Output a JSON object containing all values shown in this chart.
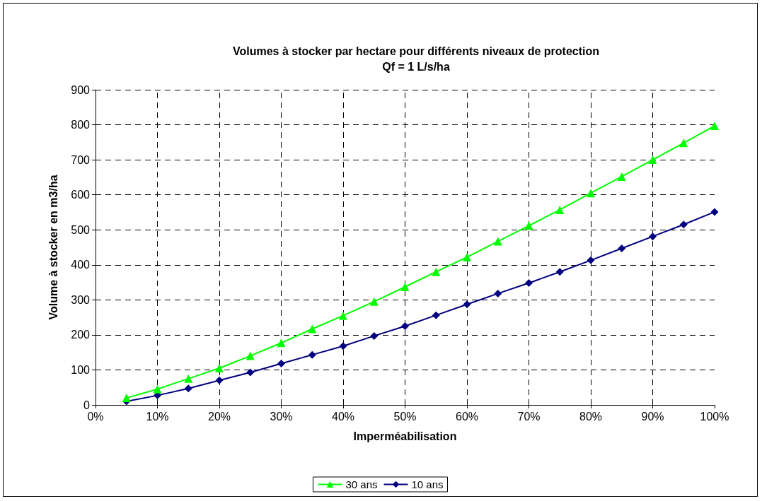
{
  "chart_data": {
    "type": "line",
    "title": "Volumes à stocker par hectare pour différents niveaux de protection",
    "subtitle": "Qf = 1 L/s/ha",
    "xlabel": "Imperméabilisation",
    "ylabel": "Volume à stocker en m3/ha",
    "x": [
      5,
      10,
      15,
      20,
      25,
      30,
      35,
      40,
      45,
      50,
      55,
      60,
      65,
      70,
      75,
      80,
      85,
      90,
      95,
      100
    ],
    "series": [
      {
        "name": "30 ans",
        "color": "#00ff00",
        "marker": "triangle",
        "values": [
          20,
          45,
          75,
          105,
          140,
          177,
          217,
          255,
          295,
          337,
          380,
          422,
          467,
          512,
          557,
          605,
          652,
          700,
          748,
          797
        ]
      },
      {
        "name": "10 ans",
        "color": "#000080",
        "marker": "diamond",
        "values": [
          10,
          27,
          47,
          70,
          93,
          118,
          143,
          168,
          197,
          225,
          256,
          287,
          318,
          348,
          380,
          413,
          447,
          481,
          515,
          551
        ]
      }
    ],
    "xlim": [
      0,
      100
    ],
    "xticks": [
      {
        "value": 0,
        "label": "0%"
      },
      {
        "value": 10,
        "label": "10%"
      },
      {
        "value": 20,
        "label": "20%"
      },
      {
        "value": 30,
        "label": "30%"
      },
      {
        "value": 40,
        "label": "40%"
      },
      {
        "value": 50,
        "label": "50%"
      },
      {
        "value": 60,
        "label": "60%"
      },
      {
        "value": 70,
        "label": "70%"
      },
      {
        "value": 80,
        "label": "80%"
      },
      {
        "value": 90,
        "label": "90%"
      },
      {
        "value": 100,
        "label": "100%"
      }
    ],
    "ylim": [
      0,
      900
    ],
    "yticks": [
      0,
      100,
      200,
      300,
      400,
      500,
      600,
      700,
      800,
      900
    ],
    "grid": true,
    "legend": "bottom",
    "line_style": "solid"
  }
}
